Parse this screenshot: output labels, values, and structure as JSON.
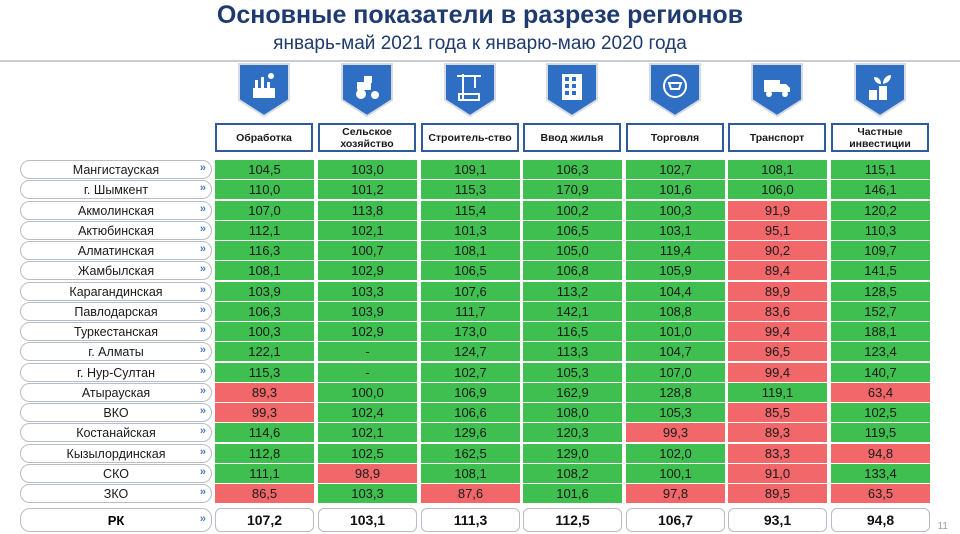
{
  "title": "Основные показатели в разрезе регионов",
  "subtitle": "январь-май 2021 года к январю-маю 2020 года",
  "page_number": "11",
  "columns": [
    {
      "label": "Обработка",
      "icon": "factory-icon"
    },
    {
      "label": "Сельское хозяйство",
      "icon": "tractor-icon"
    },
    {
      "label": "Строитель-ство",
      "icon": "crane-icon"
    },
    {
      "label": "Ввод жилья",
      "icon": "building-icon"
    },
    {
      "label": "Торговля",
      "icon": "cart-icon"
    },
    {
      "label": "Транспорт",
      "icon": "truck-icon"
    },
    {
      "label": "Частные инвестиции",
      "icon": "coins-plant-icon"
    }
  ],
  "rows": [
    {
      "region": "Мангистауская",
      "values": [
        "104,5",
        "103,0",
        "109,1",
        "106,3",
        "102,7",
        "108,1",
        "115,1"
      ],
      "status": [
        "g",
        "g",
        "g",
        "g",
        "g",
        "g",
        "g"
      ]
    },
    {
      "region": "г. Шымкент",
      "values": [
        "110,0",
        "101,2",
        "115,3",
        "170,9",
        "101,6",
        "106,0",
        "146,1"
      ],
      "status": [
        "g",
        "g",
        "g",
        "g",
        "g",
        "g",
        "g"
      ]
    },
    {
      "region": "Акмолинская",
      "values": [
        "107,0",
        "113,8",
        "115,4",
        "100,2",
        "100,3",
        "91,9",
        "120,2"
      ],
      "status": [
        "g",
        "g",
        "g",
        "g",
        "g",
        "r",
        "g"
      ]
    },
    {
      "region": "Актюбинская",
      "values": [
        "112,1",
        "102,1",
        "101,3",
        "106,5",
        "103,1",
        "95,1",
        "110,3"
      ],
      "status": [
        "g",
        "g",
        "g",
        "g",
        "g",
        "r",
        "g"
      ]
    },
    {
      "region": "Алматинская",
      "values": [
        "116,3",
        "100,7",
        "108,1",
        "105,0",
        "119,4",
        "90,2",
        "109,7"
      ],
      "status": [
        "g",
        "g",
        "g",
        "g",
        "g",
        "r",
        "g"
      ]
    },
    {
      "region": "Жамбылская",
      "values": [
        "108,1",
        "102,9",
        "106,5",
        "106,8",
        "105,9",
        "89,4",
        "141,5"
      ],
      "status": [
        "g",
        "g",
        "g",
        "g",
        "g",
        "r",
        "g"
      ]
    },
    {
      "region": "Карагандинская",
      "values": [
        "103,9",
        "103,3",
        "107,6",
        "113,2",
        "104,4",
        "89,9",
        "128,5"
      ],
      "status": [
        "g",
        "g",
        "g",
        "g",
        "g",
        "r",
        "g"
      ]
    },
    {
      "region": "Павлодарская",
      "values": [
        "106,3",
        "103,9",
        "111,7",
        "142,1",
        "108,8",
        "83,6",
        "152,7"
      ],
      "status": [
        "g",
        "g",
        "g",
        "g",
        "g",
        "r",
        "g"
      ]
    },
    {
      "region": "Туркестанская",
      "values": [
        "100,3",
        "102,9",
        "173,0",
        "116,5",
        "101,0",
        "99,4",
        "188,1"
      ],
      "status": [
        "g",
        "g",
        "g",
        "g",
        "g",
        "r",
        "g"
      ]
    },
    {
      "region": "г. Алматы",
      "values": [
        "122,1",
        "-",
        "124,7",
        "113,3",
        "104,7",
        "96,5",
        "123,4"
      ],
      "status": [
        "g",
        "g",
        "g",
        "g",
        "g",
        "r",
        "g"
      ]
    },
    {
      "region": "г. Нур-Султан",
      "values": [
        "115,3",
        "-",
        "102,7",
        "105,3",
        "107,0",
        "99,4",
        "140,7"
      ],
      "status": [
        "g",
        "g",
        "g",
        "g",
        "g",
        "r",
        "g"
      ]
    },
    {
      "region": "Атырауская",
      "values": [
        "89,3",
        "100,0",
        "106,9",
        "162,9",
        "128,8",
        "119,1",
        "63,4"
      ],
      "status": [
        "r",
        "g",
        "g",
        "g",
        "g",
        "g",
        "r"
      ]
    },
    {
      "region": "ВКО",
      "values": [
        "99,3",
        "102,4",
        "106,6",
        "108,0",
        "105,3",
        "85,5",
        "102,5"
      ],
      "status": [
        "r",
        "g",
        "g",
        "g",
        "g",
        "r",
        "g"
      ]
    },
    {
      "region": "Костанайская",
      "values": [
        "114,6",
        "102,1",
        "129,6",
        "120,3",
        "99,3",
        "89,3",
        "119,5"
      ],
      "status": [
        "g",
        "g",
        "g",
        "g",
        "r",
        "r",
        "g"
      ]
    },
    {
      "region": "Кызылординская",
      "values": [
        "112,8",
        "102,5",
        "162,5",
        "129,0",
        "102,0",
        "83,3",
        "94,8"
      ],
      "status": [
        "g",
        "g",
        "g",
        "g",
        "g",
        "r",
        "r"
      ]
    },
    {
      "region": "СКО",
      "values": [
        "111,1",
        "98,9",
        "108,1",
        "108,2",
        "100,1",
        "91,0",
        "133,4"
      ],
      "status": [
        "g",
        "r",
        "g",
        "g",
        "g",
        "r",
        "g"
      ]
    },
    {
      "region": "ЗКО",
      "values": [
        "86,5",
        "103,3",
        "87,6",
        "101,6",
        "97,8",
        "89,5",
        "63,5"
      ],
      "status": [
        "r",
        "g",
        "r",
        "g",
        "r",
        "r",
        "r"
      ]
    }
  ],
  "total": {
    "region": "РК",
    "values": [
      "107,2",
      "103,1",
      "111,3",
      "112,5",
      "106,7",
      "93,1",
      "94,8"
    ]
  },
  "colors": {
    "green": "#3fbf4f",
    "red": "#f2686a",
    "header_blue": "#1f3a6e",
    "badge_blue": "#2e6fc4"
  }
}
